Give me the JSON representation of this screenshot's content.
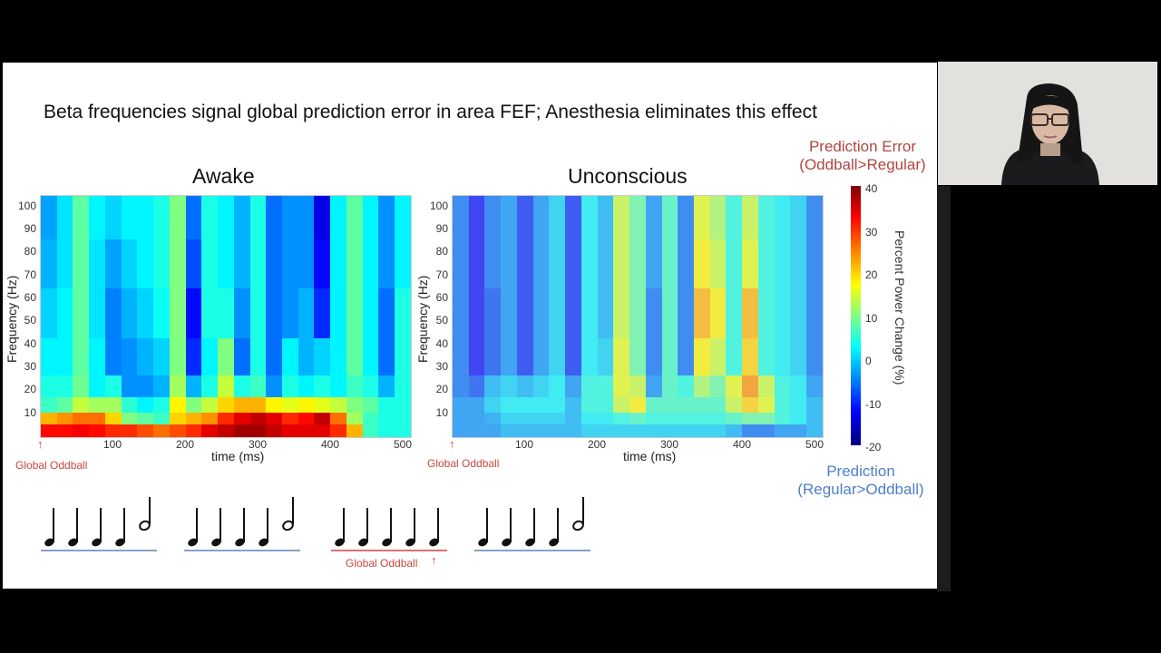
{
  "slide": {
    "title": "Beta frequencies signal global prediction error in area FEF; Anesthesia eliminates this effect",
    "legend_top": {
      "line1": "Prediction Error",
      "line2": "(Oddball>Regular)"
    },
    "legend_bottom": {
      "line1": "Prediction",
      "line2": "(Regular>Oddball)"
    },
    "colorbar": {
      "label": "Percent Power Change (%)",
      "ticks": [
        "40",
        "30",
        "20",
        "10",
        "0",
        "-10",
        "-20"
      ]
    },
    "sequences": [
      {
        "notes": [
          "quarter",
          "quarter",
          "quarter",
          "quarter",
          "half"
        ],
        "underline_color": "#7fa3c9"
      },
      {
        "notes": [
          "quarter",
          "quarter",
          "quarter",
          "quarter",
          "half"
        ],
        "underline_color": "#7fa3c9"
      },
      {
        "notes": [
          "quarter",
          "quarter",
          "quarter",
          "quarter",
          "quarter"
        ],
        "underline_color": "#d9736b",
        "label": "Global Oddball"
      },
      {
        "notes": [
          "quarter",
          "quarter",
          "quarter",
          "quarter",
          "half"
        ],
        "underline_color": "#7fa3c9"
      }
    ]
  },
  "webcam": {
    "description": "presenter webcam feed"
  },
  "chart_data": [
    {
      "type": "heatmap",
      "title": "Awake",
      "xlabel": "time (ms)",
      "ylabel": "Frequency (Hz)",
      "xticks": [
        "100",
        "200",
        "300",
        "400",
        "500"
      ],
      "yticks": [
        "10",
        "20",
        "30",
        "40",
        "50",
        "60",
        "70",
        "80",
        "90",
        "100"
      ],
      "xlim": [
        0,
        510
      ],
      "ylim": [
        0,
        105
      ],
      "annotation": "Global Oddball",
      "colorbar_range": [
        -20,
        40
      ],
      "description": "Strong positive (red, ~30-40%) power change at low frequencies (<10 Hz), peaking 250-450 ms; upper frequencies mostly near 0 with negative stripes (-5 to -10%) around 220, 300, 350, 400, 480 ms",
      "rows_bottom_to_top_hz": [
        2,
        7,
        12,
        20,
        35,
        55,
        80,
        100
      ],
      "columns": [
        [
          32,
          22,
          6,
          4,
          2,
          0,
          -2,
          -3
        ],
        [
          32,
          24,
          8,
          4,
          2,
          2,
          1,
          1
        ],
        [
          33,
          26,
          14,
          9,
          8,
          8,
          8,
          8
        ],
        [
          32,
          26,
          12,
          2,
          2,
          1,
          1,
          2
        ],
        [
          30,
          20,
          12,
          4,
          -5,
          -5,
          -3,
          0
        ],
        [
          30,
          10,
          5,
          -4,
          -4,
          -2,
          0,
          2
        ],
        [
          28,
          8,
          2,
          -4,
          -2,
          0,
          2,
          2
        ],
        [
          26,
          6,
          4,
          -2,
          0,
          3,
          4,
          4
        ],
        [
          28,
          20,
          18,
          12,
          10,
          10,
          10,
          10
        ],
        [
          30,
          22,
          10,
          -2,
          -10,
          -12,
          -8,
          -6
        ],
        [
          34,
          24,
          14,
          4,
          2,
          4,
          4,
          4
        ],
        [
          36,
          30,
          20,
          14,
          10,
          4,
          2,
          2
        ],
        [
          38,
          34,
          22,
          4,
          -6,
          -4,
          -2,
          -2
        ],
        [
          38,
          36,
          22,
          6,
          4,
          4,
          4,
          4
        ],
        [
          36,
          34,
          18,
          -4,
          -6,
          -6,
          -6,
          -6
        ],
        [
          34,
          30,
          16,
          4,
          2,
          -4,
          -4,
          -4
        ],
        [
          34,
          32,
          18,
          2,
          -2,
          -2,
          -4,
          -4
        ],
        [
          34,
          36,
          16,
          4,
          0,
          -10,
          -12,
          -14
        ],
        [
          30,
          26,
          14,
          2,
          2,
          2,
          2,
          2
        ],
        [
          22,
          12,
          10,
          6,
          8,
          8,
          8,
          8
        ],
        [
          6,
          6,
          8,
          4,
          2,
          2,
          2,
          2
        ],
        [
          4,
          4,
          4,
          -2,
          -6,
          -6,
          -4,
          -4
        ],
        [
          4,
          4,
          4,
          4,
          4,
          4,
          2,
          2
        ]
      ]
    },
    {
      "type": "heatmap",
      "title": "Unconscious",
      "xlabel": "time (ms)",
      "ylabel": "Frequency (Hz)",
      "xticks": [
        "100",
        "200",
        "300",
        "400",
        "500"
      ],
      "yticks": [
        "10",
        "20",
        "30",
        "40",
        "50",
        "60",
        "70",
        "80",
        "90",
        "100"
      ],
      "xlim": [
        0,
        510
      ],
      "ylim": [
        0,
        105
      ],
      "annotation": "Global Oddball",
      "colorbar_range": [
        -20,
        40
      ],
      "description": "Weaker, desaturated effects; no low-frequency increase; negative stripes early (20-170 ms); positive (yellow-orange, ~15-25%) stripes around 230, 340, 380, 420 ms",
      "rows_bottom_to_top_hz": [
        2,
        7,
        12,
        20,
        35,
        55,
        80,
        100
      ],
      "columns": [
        [
          -4,
          -4,
          -4,
          -6,
          -6,
          -6,
          -6,
          -6
        ],
        [
          -4,
          -4,
          -4,
          -8,
          -12,
          -12,
          -12,
          -12
        ],
        [
          -4,
          -3,
          0,
          -2,
          -8,
          -8,
          -6,
          -6
        ],
        [
          -2,
          0,
          2,
          0,
          -4,
          -4,
          -4,
          -4
        ],
        [
          -2,
          0,
          2,
          -2,
          -10,
          -10,
          -10,
          -10
        ],
        [
          -2,
          0,
          2,
          0,
          -4,
          -4,
          -4,
          -4
        ],
        [
          -2,
          0,
          2,
          2,
          0,
          0,
          0,
          0
        ],
        [
          -2,
          -2,
          -2,
          -4,
          -10,
          -10,
          -10,
          -10
        ],
        [
          0,
          2,
          4,
          4,
          2,
          2,
          2,
          2
        ],
        [
          0,
          2,
          4,
          4,
          0,
          -2,
          -2,
          -2
        ],
        [
          0,
          4,
          14,
          16,
          16,
          14,
          14,
          14
        ],
        [
          0,
          6,
          18,
          14,
          8,
          8,
          8,
          8
        ],
        [
          0,
          4,
          6,
          -4,
          -6,
          -6,
          -4,
          -4
        ],
        [
          0,
          4,
          6,
          6,
          6,
          6,
          6,
          6
        ],
        [
          0,
          4,
          6,
          4,
          -6,
          -6,
          -6,
          -6
        ],
        [
          0,
          4,
          6,
          12,
          18,
          22,
          18,
          16
        ],
        [
          0,
          4,
          6,
          8,
          14,
          18,
          14,
          12
        ],
        [
          -2,
          6,
          14,
          16,
          4,
          4,
          4,
          4
        ],
        [
          -6,
          8,
          20,
          24,
          20,
          22,
          16,
          14
        ],
        [
          -6,
          8,
          16,
          14,
          4,
          4,
          4,
          4
        ],
        [
          -4,
          4,
          4,
          4,
          2,
          2,
          2,
          2
        ],
        [
          -4,
          2,
          2,
          2,
          0,
          0,
          0,
          0
        ],
        [
          -2,
          -2,
          -2,
          -4,
          -6,
          -6,
          -6,
          -6
        ]
      ]
    }
  ],
  "plots": [
    {
      "title": "Awake",
      "xlabel": "time (ms)",
      "ylabel": "Frequency (Hz)",
      "odd": "Global Oddball"
    },
    {
      "title": "Unconscious",
      "xlabel": "time (ms)",
      "ylabel": "Frequency (Hz)",
      "odd": "Global Oddball"
    }
  ]
}
